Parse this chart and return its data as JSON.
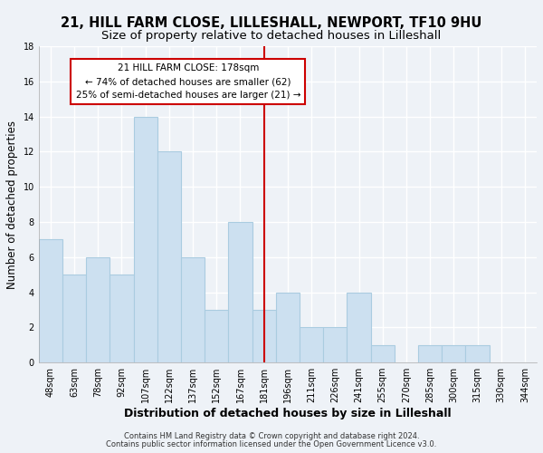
{
  "title": "21, HILL FARM CLOSE, LILLESHALL, NEWPORT, TF10 9HU",
  "subtitle": "Size of property relative to detached houses in Lilleshall",
  "xlabel": "Distribution of detached houses by size in Lilleshall",
  "ylabel": "Number of detached properties",
  "bin_labels": [
    "48sqm",
    "63sqm",
    "78sqm",
    "92sqm",
    "107sqm",
    "122sqm",
    "137sqm",
    "152sqm",
    "167sqm",
    "181sqm",
    "196sqm",
    "211sqm",
    "226sqm",
    "241sqm",
    "255sqm",
    "270sqm",
    "285sqm",
    "300sqm",
    "315sqm",
    "330sqm",
    "344sqm"
  ],
  "bar_heights": [
    7,
    5,
    6,
    5,
    14,
    12,
    6,
    3,
    8,
    3,
    4,
    2,
    2,
    4,
    1,
    0,
    1,
    1,
    1,
    0,
    0
  ],
  "bar_color": "#cce0f0",
  "bar_edge_color": "#aacce0",
  "vline_x_index": 9,
  "vline_color": "#cc0000",
  "annotation_title": "21 HILL FARM CLOSE: 178sqm",
  "annotation_line1": "← 74% of detached houses are smaller (62)",
  "annotation_line2": "25% of semi-detached houses are larger (21) →",
  "annotation_box_color": "#ffffff",
  "annotation_box_edge": "#cc0000",
  "ylim": [
    0,
    18
  ],
  "yticks": [
    0,
    2,
    4,
    6,
    8,
    10,
    12,
    14,
    16,
    18
  ],
  "footer1": "Contains HM Land Registry data © Crown copyright and database right 2024.",
  "footer2": "Contains public sector information licensed under the Open Government Licence v3.0.",
  "background_color": "#eef2f7",
  "grid_color": "#ffffff",
  "title_fontsize": 10.5,
  "subtitle_fontsize": 9.5,
  "xlabel_fontsize": 9,
  "ylabel_fontsize": 8.5,
  "tick_fontsize": 7,
  "annotation_fontsize": 7.5,
  "footer_fontsize": 6
}
